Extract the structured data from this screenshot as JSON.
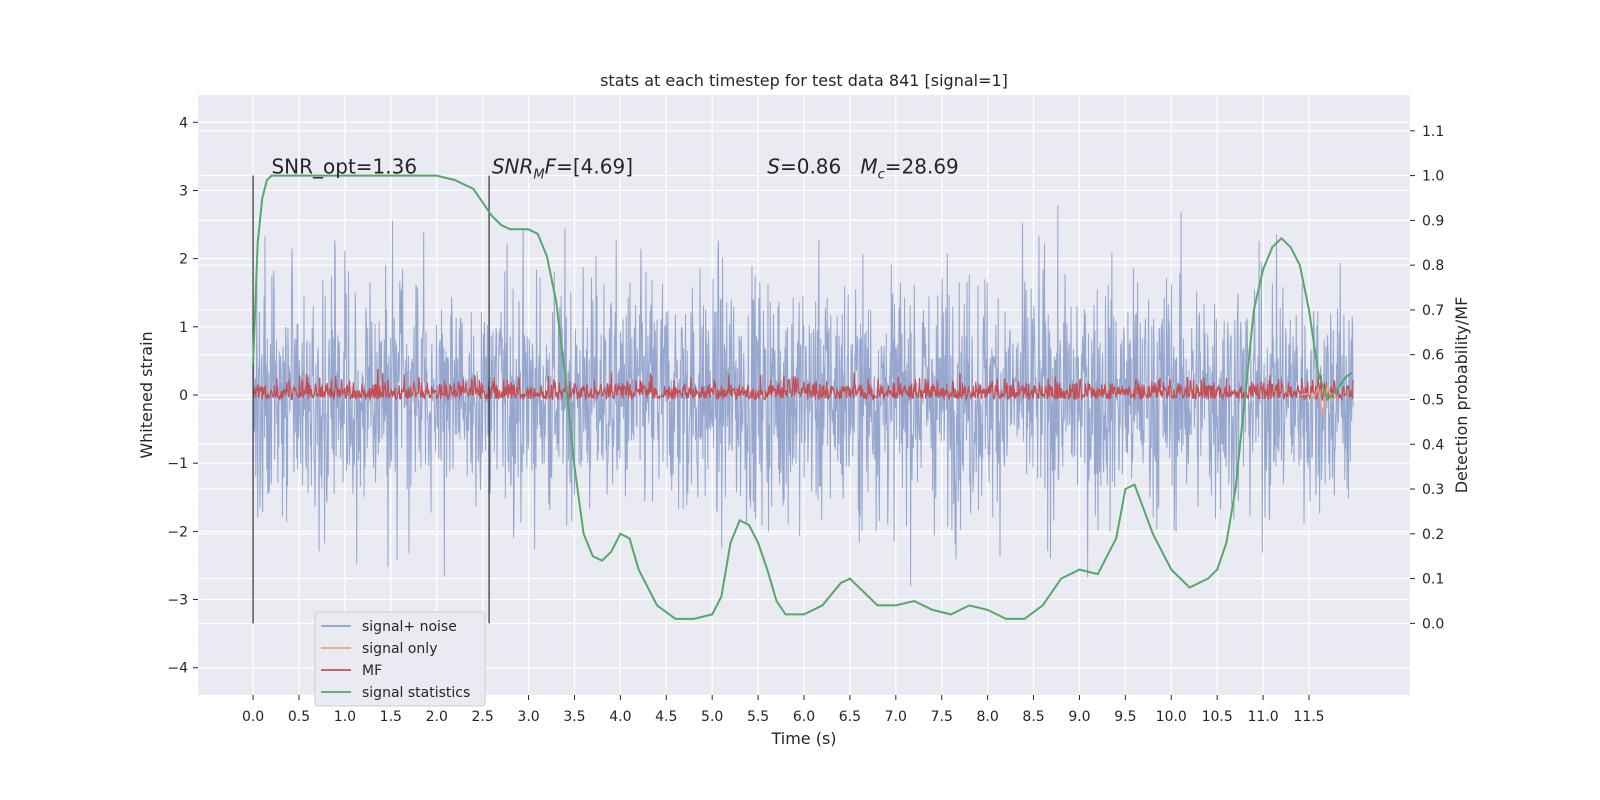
{
  "chart_data": {
    "type": "line",
    "title": "stats at each timestep for test data 841 [signal=1]",
    "xlabel": "Time (s)",
    "ylabel": "Whitened strain",
    "y2label": "Detection probability/MF",
    "xlim": [
      -0.6,
      12.6
    ],
    "ylim": [
      -4.4,
      4.4
    ],
    "y2lim": [
      -0.16,
      1.18
    ],
    "x_ticks": [
      0.0,
      0.5,
      1.0,
      1.5,
      2.0,
      2.5,
      3.0,
      3.5,
      4.0,
      4.5,
      5.0,
      5.5,
      6.0,
      6.5,
      7.0,
      7.5,
      8.0,
      8.5,
      9.0,
      9.5,
      10.0,
      10.5,
      11.0,
      11.5
    ],
    "x_tick_labels": [
      "0.0",
      "0.5",
      "1.0",
      "1.5",
      "2.0",
      "2.5",
      "3.0",
      "3.5",
      "4.0",
      "4.5",
      "5.0",
      "5.5",
      "6.0",
      "6.5",
      "7.0",
      "7.5",
      "8.0",
      "8.5",
      "9.0",
      "9.5",
      "10.0",
      "10.5",
      "11.0",
      "11.5"
    ],
    "y_ticks": [
      4,
      3,
      2,
      1,
      0,
      -1,
      -2,
      -3,
      -4
    ],
    "y_tick_labels": [
      "4",
      "3",
      "2",
      "1",
      "0",
      "−1",
      "−2",
      "−3",
      "−4"
    ],
    "y2_ticks": [
      1.1,
      1.0,
      0.9,
      0.8,
      0.7,
      0.6,
      0.5,
      0.4,
      0.3,
      0.2,
      0.1,
      0.0
    ],
    "y2_tick_labels": [
      "1.1",
      "1.0",
      "0.9",
      "0.8",
      "0.7",
      "0.6",
      "0.5",
      "0.4",
      "0.3",
      "0.2",
      "0.1",
      "0.0"
    ],
    "grid": true,
    "legend_position": "lower-left",
    "annotations": {
      "snr_opt": "SNR_opt=1.36",
      "snr_mf_var": "SNR",
      "snr_mf_sub": "M",
      "snr_mf_var2": "F",
      "snr_mf_rest": "=[4.69]",
      "s_var": "S",
      "s_rest": "=0.86   ",
      "mc_var": "M",
      "mc_sub": "c",
      "mc_rest": "=28.69"
    },
    "vertical_markers": [
      0.0,
      2.57
    ],
    "colors": {
      "background": "#eaeaf2",
      "grid": "#ffffff",
      "noise": "#8da0cb",
      "signal_only": "#e3a68a",
      "mf": "#c44e52",
      "signal_stats": "#55a868",
      "marker": "#333333"
    },
    "series": [
      {
        "name": "signal+ noise",
        "axis": "left",
        "description_range": [
          -3.5,
          3.8
        ],
        "t_range": [
          0.0,
          11.98
        ]
      },
      {
        "name": "signal only",
        "axis": "left",
        "x": [
          11.4,
          11.5,
          11.55,
          11.6,
          11.65,
          11.7,
          11.75,
          11.8
        ],
        "values": [
          0.0,
          0.02,
          -0.05,
          0.1,
          -0.3,
          0.15,
          -0.1,
          0.0
        ]
      },
      {
        "name": "MF",
        "axis": "right",
        "description_range": [
          0.5,
          0.58
        ],
        "t_range": [
          0.0,
          11.98
        ]
      },
      {
        "name": "signal statistics",
        "axis": "right",
        "x": [
          0.0,
          0.05,
          0.1,
          0.15,
          0.2,
          0.3,
          0.5,
          1.0,
          1.5,
          2.0,
          2.2,
          2.4,
          2.6,
          2.7,
          2.8,
          3.0,
          3.1,
          3.2,
          3.3,
          3.4,
          3.5,
          3.6,
          3.7,
          3.8,
          3.9,
          4.0,
          4.1,
          4.2,
          4.4,
          4.6,
          4.8,
          5.0,
          5.1,
          5.2,
          5.3,
          5.4,
          5.5,
          5.6,
          5.7,
          5.8,
          5.9,
          6.0,
          6.2,
          6.4,
          6.5,
          6.6,
          6.8,
          7.0,
          7.2,
          7.4,
          7.6,
          7.8,
          8.0,
          8.2,
          8.4,
          8.6,
          8.8,
          9.0,
          9.2,
          9.4,
          9.5,
          9.6,
          9.8,
          10.0,
          10.2,
          10.4,
          10.5,
          10.6,
          10.7,
          10.8,
          10.9,
          11.0,
          11.1,
          11.2,
          11.3,
          11.4,
          11.5,
          11.6,
          11.7,
          11.8,
          11.9,
          11.97
        ],
        "values": [
          0.58,
          0.85,
          0.95,
          0.99,
          1.0,
          1.0,
          1.0,
          1.0,
          1.0,
          1.0,
          0.99,
          0.97,
          0.91,
          0.89,
          0.88,
          0.88,
          0.87,
          0.82,
          0.72,
          0.55,
          0.35,
          0.2,
          0.15,
          0.14,
          0.16,
          0.2,
          0.19,
          0.12,
          0.04,
          0.01,
          0.01,
          0.02,
          0.06,
          0.18,
          0.23,
          0.22,
          0.18,
          0.12,
          0.05,
          0.02,
          0.02,
          0.02,
          0.04,
          0.09,
          0.1,
          0.08,
          0.04,
          0.04,
          0.05,
          0.03,
          0.02,
          0.04,
          0.03,
          0.01,
          0.01,
          0.04,
          0.1,
          0.12,
          0.11,
          0.19,
          0.3,
          0.31,
          0.2,
          0.12,
          0.08,
          0.1,
          0.12,
          0.18,
          0.3,
          0.5,
          0.7,
          0.79,
          0.84,
          0.86,
          0.84,
          0.8,
          0.7,
          0.56,
          0.5,
          0.52,
          0.55,
          0.56
        ]
      }
    ]
  }
}
